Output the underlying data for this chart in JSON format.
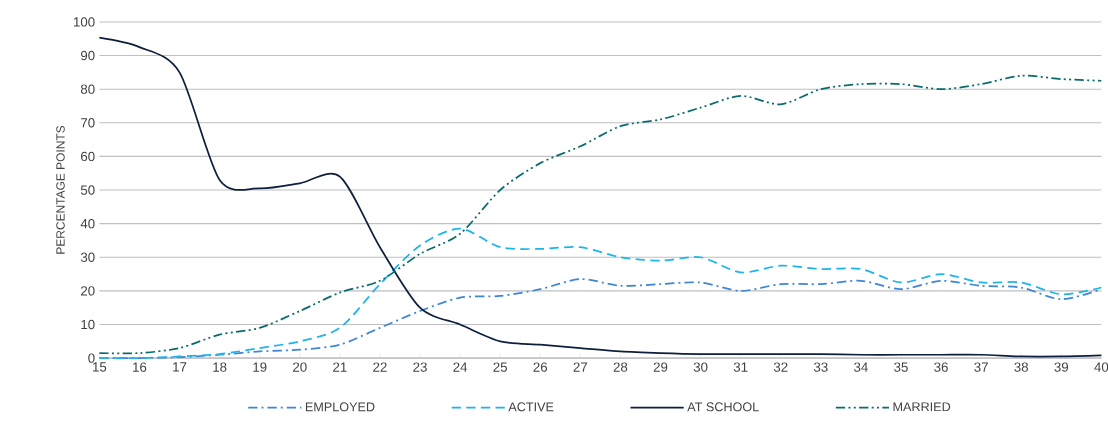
{
  "chart_data": {
    "type": "line",
    "ylabel": "PERCENTAGE POINTS",
    "x": [
      15,
      16,
      17,
      18,
      19,
      20,
      21,
      22,
      23,
      24,
      25,
      26,
      27,
      28,
      29,
      30,
      31,
      32,
      33,
      34,
      35,
      36,
      37,
      38,
      39,
      40
    ],
    "series": [
      {
        "name": "EMPLOYED",
        "color": "#3d85d8",
        "line_style": "dashdot",
        "values": [
          0,
          0,
          0.3,
          1,
          2,
          2.5,
          4,
          9,
          14,
          18,
          18.5,
          20.5,
          23.5,
          21.5,
          22,
          22.5,
          20,
          22,
          22,
          23,
          20.5,
          23,
          21.5,
          21,
          17.5,
          20.5
        ]
      },
      {
        "name": "ACTIVE",
        "color": "#1cb4ea",
        "line_style": "dashed",
        "values": [
          0,
          0,
          0.5,
          1.2,
          3,
          5,
          9,
          22,
          33.5,
          38.5,
          33,
          32.5,
          33,
          30,
          29,
          30,
          25.5,
          27.5,
          26.5,
          26.5,
          22.5,
          25,
          22.5,
          22.5,
          19,
          21
        ]
      },
      {
        "name": "AT SCHOOL",
        "color": "#0d1f3c",
        "line_style": "solid",
        "values": [
          95.3,
          92.5,
          85,
          53,
          50.5,
          52,
          54,
          33,
          15,
          10,
          5,
          4,
          3,
          2,
          1.5,
          1.2,
          1.2,
          1.2,
          1.2,
          1,
          1,
          1,
          1,
          0.5,
          0.5,
          0.8
        ]
      },
      {
        "name": "MARRIED",
        "color": "#0a6b6b",
        "line_style": "dashdotdot",
        "values": [
          1.5,
          1.5,
          3,
          7,
          9,
          14,
          19.5,
          23,
          31,
          37,
          50,
          58,
          63,
          69,
          71,
          74.5,
          78,
          75.5,
          80,
          81.5,
          81.5,
          80,
          81.5,
          84,
          83,
          82.5
        ]
      }
    ],
    "xlim": [
      15,
      40
    ],
    "xticks": [
      15,
      16,
      17,
      18,
      19,
      20,
      21,
      22,
      23,
      24,
      25,
      26,
      27,
      28,
      29,
      30,
      31,
      32,
      33,
      34,
      35,
      36,
      37,
      38,
      39,
      40
    ],
    "ylim": [
      0,
      100
    ],
    "yticks": [
      0,
      10,
      20,
      30,
      40,
      50,
      60,
      70,
      80,
      90,
      100
    ],
    "grid": "y",
    "legend": "bottom",
    "marker": "none"
  }
}
